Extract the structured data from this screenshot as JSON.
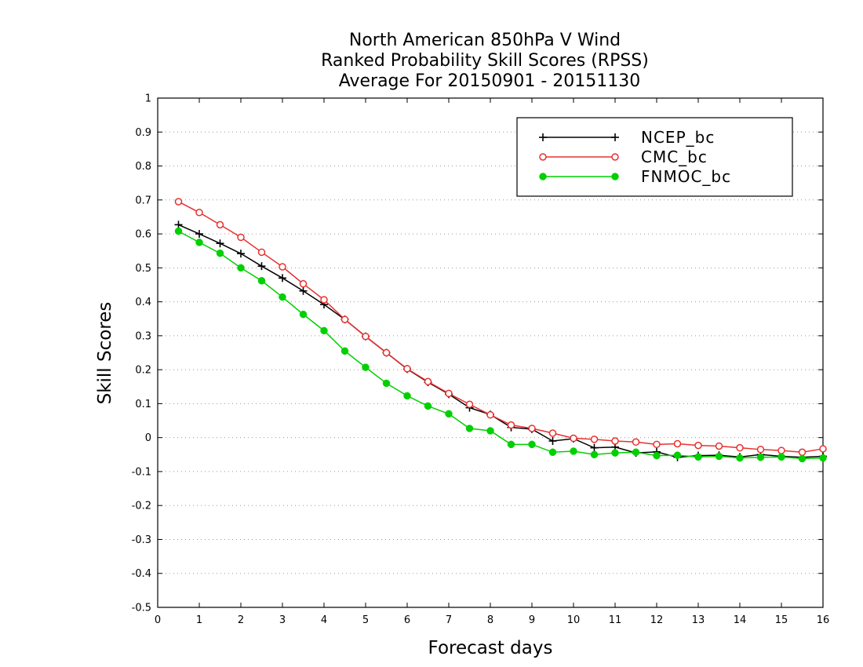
{
  "chart_data": {
    "type": "line",
    "title_lines": [
      "North American 850hPa V Wind",
      "Ranked Probability Skill Scores (RPSS)",
      "Average For 20150901 - 20151130"
    ],
    "xlabel": "Forecast days",
    "ylabel": "Skill Scores",
    "xlim": [
      0,
      16
    ],
    "ylim": [
      -0.5,
      1
    ],
    "x_ticks": [
      "0",
      "1",
      "2",
      "3",
      "4",
      "5",
      "6",
      "7",
      "8",
      "9",
      "10",
      "11",
      "12",
      "13",
      "14",
      "15",
      "16"
    ],
    "y_ticks": [
      "1",
      "0.9",
      "0.8",
      "0.7",
      "0.6",
      "0.5",
      "0.4",
      "0.3",
      "0.2",
      "0.1",
      "0",
      "-0.1",
      "-0.2",
      "-0.3",
      "-0.4",
      "-0.5"
    ],
    "grid": "horizontal dotted",
    "legend_position": "top-right",
    "x": [
      0.5,
      1,
      1.5,
      2,
      2.5,
      3,
      3.5,
      4,
      4.5,
      5,
      5.5,
      6,
      6.5,
      7,
      7.5,
      8,
      8.5,
      9,
      9.5,
      10,
      10.5,
      11,
      11.5,
      12,
      12.5,
      13,
      13.5,
      14,
      14.5,
      15,
      15.5,
      16
    ],
    "series": [
      {
        "name": "NCEP_bc",
        "color": "#000000",
        "marker": "plus",
        "values": [
          0.627,
          0.6,
          0.572,
          0.542,
          0.505,
          0.47,
          0.432,
          0.392,
          0.348,
          0.298,
          0.25,
          0.202,
          0.163,
          0.128,
          0.088,
          0.068,
          0.03,
          0.025,
          -0.01,
          -0.003,
          -0.03,
          -0.028,
          -0.045,
          -0.042,
          -0.058,
          -0.053,
          -0.052,
          -0.057,
          -0.05,
          -0.055,
          -0.058,
          -0.055
        ]
      },
      {
        "name": "CMC_bc",
        "color": "#e83030",
        "marker": "open-circle",
        "values": [
          0.695,
          0.663,
          0.627,
          0.59,
          0.546,
          0.503,
          0.453,
          0.406,
          0.348,
          0.298,
          0.25,
          0.203,
          0.165,
          0.13,
          0.098,
          0.067,
          0.037,
          0.027,
          0.013,
          -0.002,
          -0.005,
          -0.01,
          -0.013,
          -0.02,
          -0.018,
          -0.023,
          -0.025,
          -0.03,
          -0.035,
          -0.038,
          -0.043,
          -0.033
        ]
      },
      {
        "name": "FNMOC_bc",
        "color": "#00d000",
        "marker": "filled-circle",
        "values": [
          0.608,
          0.575,
          0.543,
          0.5,
          0.462,
          0.414,
          0.363,
          0.315,
          0.255,
          0.207,
          0.16,
          0.123,
          0.093,
          0.07,
          0.027,
          0.02,
          -0.02,
          -0.02,
          -0.043,
          -0.04,
          -0.05,
          -0.045,
          -0.043,
          -0.053,
          -0.052,
          -0.057,
          -0.055,
          -0.06,
          -0.058,
          -0.057,
          -0.062,
          -0.06
        ]
      }
    ]
  }
}
